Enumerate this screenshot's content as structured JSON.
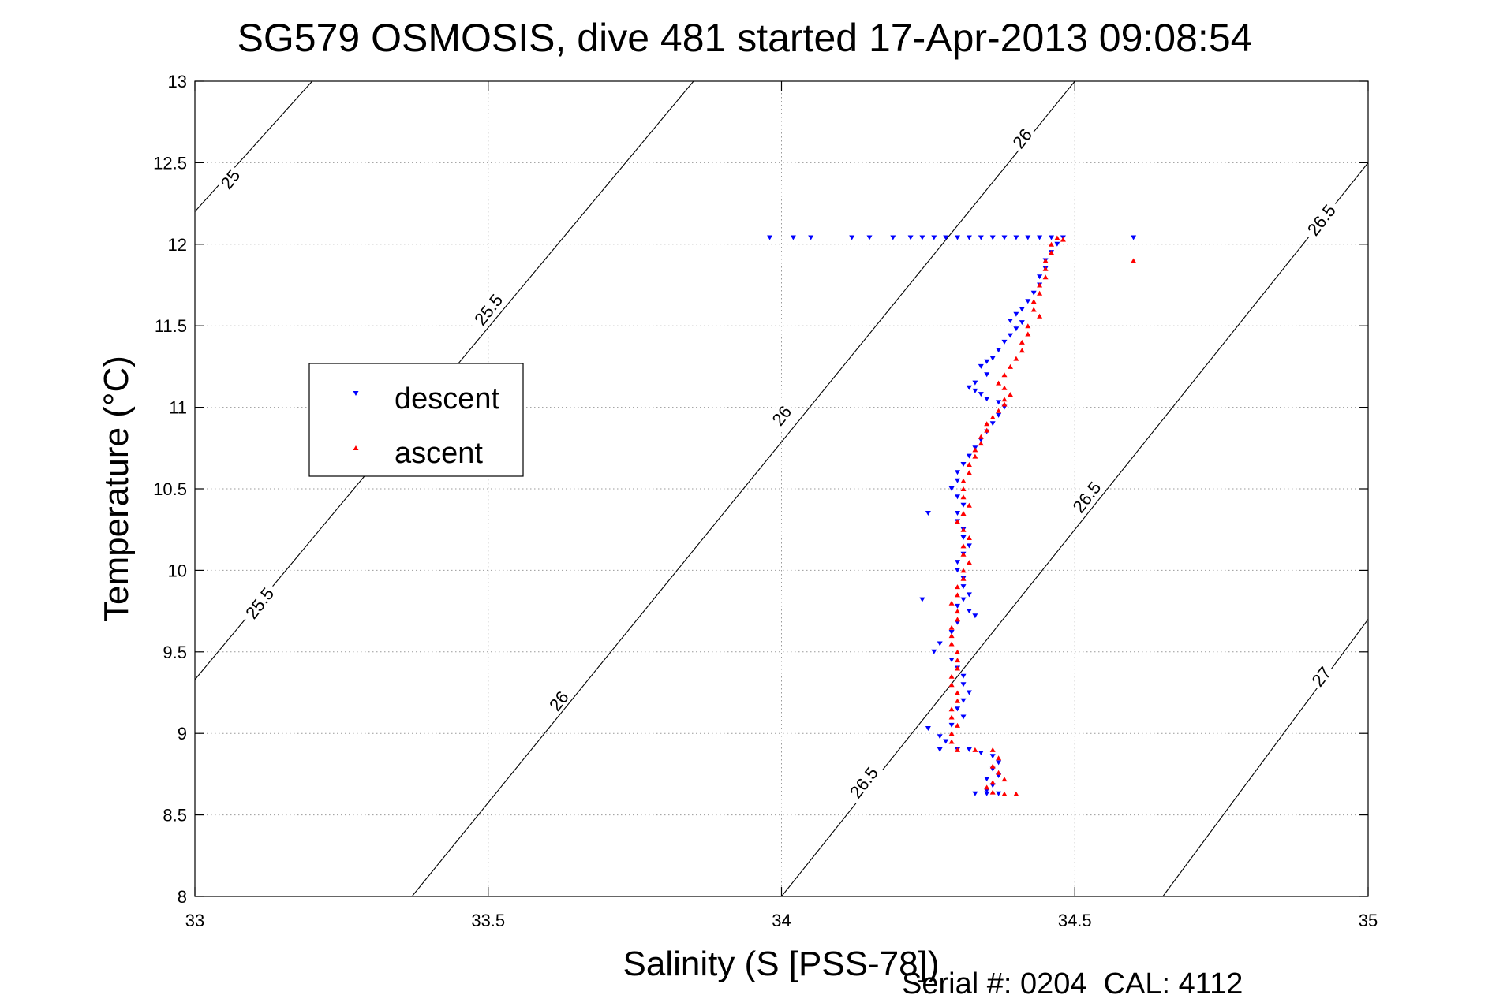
{
  "chart_data": {
    "type": "scatter",
    "title": "SG579 OSMOSIS, dive 481 started 17-Apr-2013 09:08:54",
    "xlabel": "Salinity (S [PSS-78])",
    "ylabel": "Temperature (°C)",
    "xlim": [
      33,
      35
    ],
    "ylim": [
      8,
      13
    ],
    "xticks": [
      "33",
      "33.5",
      "34",
      "34.5",
      "35"
    ],
    "yticks": [
      "8",
      "8.5",
      "9",
      "9.5",
      "10",
      "10.5",
      "11",
      "11.5",
      "12",
      "12.5",
      "13"
    ],
    "grid": true,
    "legend_position": "left-middle",
    "footer": "Serial #: 0204  CAL: 4112",
    "density_contours": [
      {
        "label": "25",
        "points": [
          [
            33.0,
            12.2
          ],
          [
            33.2,
            13.0
          ]
        ]
      },
      {
        "label": "25.5",
        "points": [
          [
            33.0,
            9.33
          ],
          [
            33.85,
            13.0
          ]
        ]
      },
      {
        "label": "26",
        "points": [
          [
            33.37,
            8.0
          ],
          [
            34.5,
            13.0
          ]
        ]
      },
      {
        "label": "26.5",
        "points": [
          [
            34.0,
            8.0
          ],
          [
            35.0,
            12.5
          ]
        ]
      },
      {
        "label": "27",
        "points": [
          [
            34.65,
            8.0
          ],
          [
            35.0,
            9.7
          ]
        ]
      }
    ],
    "contour_labels": [
      {
        "text": "25",
        "x": 33.06,
        "y": 12.4
      },
      {
        "text": "25.5",
        "x": 33.5,
        "y": 11.6
      },
      {
        "text": "25.5",
        "x": 33.11,
        "y": 9.8
      },
      {
        "text": "26",
        "x": 34.0,
        "y": 10.95
      },
      {
        "text": "26",
        "x": 33.62,
        "y": 9.2
      },
      {
        "text": "26",
        "x": 34.41,
        "y": 12.65
      },
      {
        "text": "26.5",
        "x": 34.52,
        "y": 10.45
      },
      {
        "text": "26.5",
        "x": 34.14,
        "y": 8.7
      },
      {
        "text": "26.5",
        "x": 34.92,
        "y": 12.15
      },
      {
        "text": "27",
        "x": 34.92,
        "y": 9.35
      }
    ],
    "series": [
      {
        "name": "descent",
        "color": "#0000ff",
        "marker": "triangle-down",
        "points": [
          [
            33.98,
            12.04
          ],
          [
            34.02,
            12.04
          ],
          [
            34.05,
            12.04
          ],
          [
            34.12,
            12.04
          ],
          [
            34.15,
            12.04
          ],
          [
            34.19,
            12.04
          ],
          [
            34.22,
            12.04
          ],
          [
            34.24,
            12.04
          ],
          [
            34.26,
            12.04
          ],
          [
            34.28,
            12.04
          ],
          [
            34.3,
            12.04
          ],
          [
            34.32,
            12.04
          ],
          [
            34.34,
            12.04
          ],
          [
            34.36,
            12.04
          ],
          [
            34.38,
            12.04
          ],
          [
            34.4,
            12.04
          ],
          [
            34.42,
            12.04
          ],
          [
            34.44,
            12.04
          ],
          [
            34.46,
            12.04
          ],
          [
            34.48,
            12.04
          ],
          [
            34.6,
            12.04
          ],
          [
            34.47,
            12.0
          ],
          [
            34.46,
            11.95
          ],
          [
            34.45,
            11.9
          ],
          [
            34.45,
            11.85
          ],
          [
            34.44,
            11.8
          ],
          [
            34.44,
            11.75
          ],
          [
            34.43,
            11.7
          ],
          [
            34.42,
            11.65
          ],
          [
            34.41,
            11.6
          ],
          [
            34.4,
            11.57
          ],
          [
            34.39,
            11.53
          ],
          [
            34.41,
            11.52
          ],
          [
            34.4,
            11.48
          ],
          [
            34.39,
            11.44
          ],
          [
            34.38,
            11.4
          ],
          [
            34.37,
            11.35
          ],
          [
            34.36,
            11.3
          ],
          [
            34.35,
            11.28
          ],
          [
            34.34,
            11.25
          ],
          [
            34.35,
            11.2
          ],
          [
            34.33,
            11.15
          ],
          [
            34.32,
            11.12
          ],
          [
            34.33,
            11.1
          ],
          [
            34.34,
            11.08
          ],
          [
            34.35,
            11.05
          ],
          [
            34.37,
            11.03
          ],
          [
            34.38,
            11.0
          ],
          [
            34.37,
            10.95
          ],
          [
            34.36,
            10.9
          ],
          [
            34.35,
            10.85
          ],
          [
            34.34,
            10.8
          ],
          [
            34.33,
            10.75
          ],
          [
            34.32,
            10.7
          ],
          [
            34.31,
            10.65
          ],
          [
            34.3,
            10.6
          ],
          [
            34.3,
            10.55
          ],
          [
            34.29,
            10.5
          ],
          [
            34.3,
            10.45
          ],
          [
            34.31,
            10.4
          ],
          [
            34.3,
            10.35
          ],
          [
            34.25,
            10.35
          ],
          [
            34.3,
            10.3
          ],
          [
            34.31,
            10.25
          ],
          [
            34.31,
            10.2
          ],
          [
            34.32,
            10.15
          ],
          [
            34.31,
            10.1
          ],
          [
            34.3,
            10.05
          ],
          [
            34.3,
            10.0
          ],
          [
            34.31,
            9.95
          ],
          [
            34.31,
            9.9
          ],
          [
            34.32,
            9.85
          ],
          [
            34.31,
            9.82
          ],
          [
            34.24,
            9.82
          ],
          [
            34.3,
            9.78
          ],
          [
            34.32,
            9.75
          ],
          [
            34.33,
            9.72
          ],
          [
            34.3,
            9.68
          ],
          [
            34.29,
            9.62
          ],
          [
            34.27,
            9.55
          ],
          [
            34.26,
            9.5
          ],
          [
            34.29,
            9.45
          ],
          [
            34.3,
            9.4
          ],
          [
            34.31,
            9.35
          ],
          [
            34.31,
            9.3
          ],
          [
            34.32,
            9.25
          ],
          [
            34.31,
            9.2
          ],
          [
            34.3,
            9.15
          ],
          [
            34.31,
            9.1
          ],
          [
            34.29,
            9.05
          ],
          [
            34.25,
            9.03
          ],
          [
            34.27,
            8.98
          ],
          [
            34.28,
            8.95
          ],
          [
            34.27,
            8.9
          ],
          [
            34.3,
            8.9
          ],
          [
            34.32,
            8.9
          ],
          [
            34.34,
            8.88
          ],
          [
            34.36,
            8.86
          ],
          [
            34.37,
            8.82
          ],
          [
            34.36,
            8.78
          ],
          [
            34.37,
            8.74
          ],
          [
            34.35,
            8.72
          ],
          [
            34.36,
            8.68
          ],
          [
            34.35,
            8.65
          ],
          [
            34.33,
            8.63
          ],
          [
            34.35,
            8.63
          ],
          [
            34.37,
            8.63
          ]
        ]
      },
      {
        "name": "ascent",
        "color": "#ff0000",
        "marker": "triangle-up",
        "points": [
          [
            34.6,
            11.9
          ],
          [
            34.47,
            12.04
          ],
          [
            34.48,
            12.03
          ],
          [
            34.46,
            12.0
          ],
          [
            34.46,
            11.95
          ],
          [
            34.45,
            11.9
          ],
          [
            34.45,
            11.85
          ],
          [
            34.45,
            11.8
          ],
          [
            34.44,
            11.75
          ],
          [
            34.44,
            11.7
          ],
          [
            34.43,
            11.65
          ],
          [
            34.43,
            11.6
          ],
          [
            34.44,
            11.56
          ],
          [
            34.42,
            11.5
          ],
          [
            34.42,
            11.45
          ],
          [
            34.41,
            11.4
          ],
          [
            34.41,
            11.35
          ],
          [
            34.4,
            11.3
          ],
          [
            34.39,
            11.25
          ],
          [
            34.38,
            11.2
          ],
          [
            34.37,
            11.15
          ],
          [
            34.38,
            11.12
          ],
          [
            34.39,
            11.08
          ],
          [
            34.38,
            11.05
          ],
          [
            34.38,
            11.02
          ],
          [
            34.37,
            10.98
          ],
          [
            34.36,
            10.94
          ],
          [
            34.35,
            10.9
          ],
          [
            34.35,
            10.86
          ],
          [
            34.34,
            10.82
          ],
          [
            34.34,
            10.78
          ],
          [
            34.33,
            10.74
          ],
          [
            34.33,
            10.7
          ],
          [
            34.32,
            10.65
          ],
          [
            34.32,
            10.6
          ],
          [
            34.31,
            10.55
          ],
          [
            34.31,
            10.5
          ],
          [
            34.31,
            10.45
          ],
          [
            34.32,
            10.4
          ],
          [
            34.31,
            10.35
          ],
          [
            34.3,
            10.3
          ],
          [
            34.31,
            10.25
          ],
          [
            34.32,
            10.2
          ],
          [
            34.31,
            10.15
          ],
          [
            34.31,
            10.1
          ],
          [
            34.32,
            10.05
          ],
          [
            34.31,
            10.0
          ],
          [
            34.31,
            9.95
          ],
          [
            34.3,
            9.9
          ],
          [
            34.3,
            9.85
          ],
          [
            34.29,
            9.8
          ],
          [
            34.3,
            9.75
          ],
          [
            34.3,
            9.7
          ],
          [
            34.29,
            9.65
          ],
          [
            34.29,
            9.6
          ],
          [
            34.29,
            9.55
          ],
          [
            34.3,
            9.5
          ],
          [
            34.3,
            9.45
          ],
          [
            34.3,
            9.4
          ],
          [
            34.29,
            9.35
          ],
          [
            34.29,
            9.3
          ],
          [
            34.3,
            9.25
          ],
          [
            34.3,
            9.2
          ],
          [
            34.29,
            9.15
          ],
          [
            34.29,
            9.1
          ],
          [
            34.3,
            9.05
          ],
          [
            34.29,
            9.0
          ],
          [
            34.29,
            8.95
          ],
          [
            34.3,
            8.9
          ],
          [
            34.33,
            8.9
          ],
          [
            34.36,
            8.9
          ],
          [
            34.37,
            8.85
          ],
          [
            34.36,
            8.8
          ],
          [
            34.37,
            8.76
          ],
          [
            34.38,
            8.72
          ],
          [
            34.36,
            8.7
          ],
          [
            34.35,
            8.67
          ],
          [
            34.36,
            8.64
          ],
          [
            34.38,
            8.63
          ],
          [
            34.4,
            8.63
          ]
        ]
      }
    ]
  }
}
